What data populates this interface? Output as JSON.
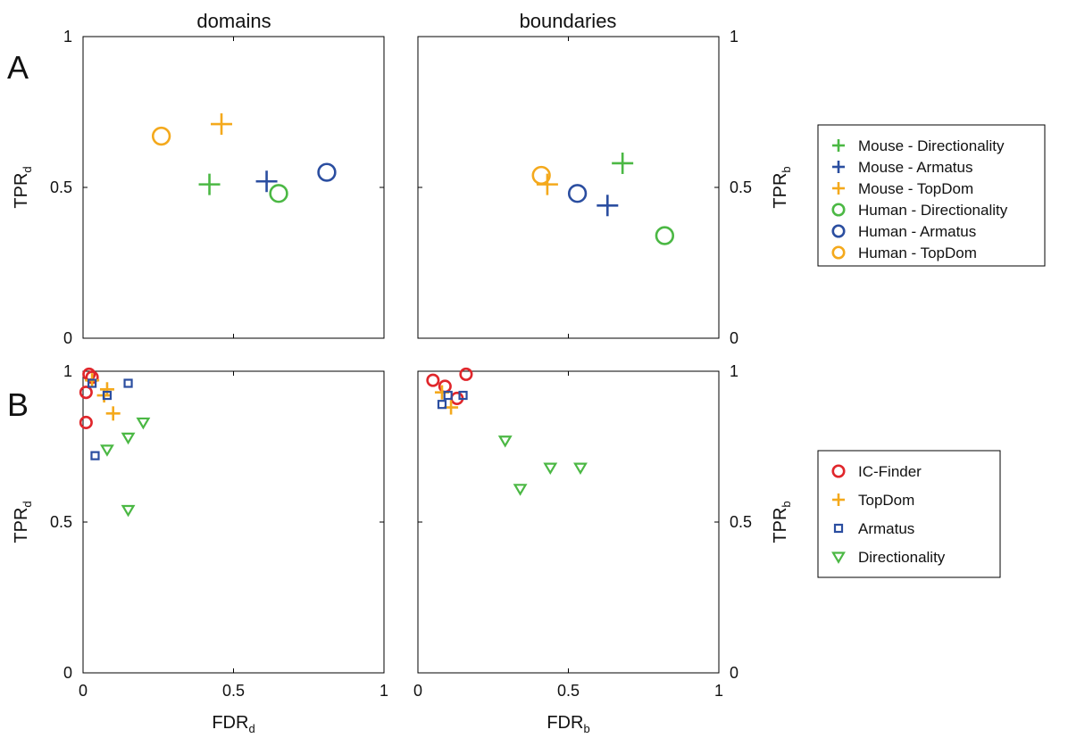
{
  "colors": {
    "green": "#4bb844",
    "blue": "#2b4ea0",
    "orange": "#f4a91c",
    "red": "#e0262b"
  },
  "columns": [
    "domains",
    "boundaries"
  ],
  "panel_letters": [
    "A",
    "B"
  ],
  "axis_labels": {
    "x_left": {
      "main": "FDR",
      "sub": "d"
    },
    "x_right": {
      "main": "FDR",
      "sub": "b"
    },
    "y_left": {
      "main": "TPR",
      "sub": "d"
    },
    "y_right": {
      "main": "TPR",
      "sub": "b"
    }
  },
  "tick_labels": {
    "x": [
      "0",
      "0.5",
      "1"
    ],
    "y": [
      "0",
      "0.5",
      "1"
    ]
  },
  "legends": {
    "A": [
      {
        "label": "Mouse - Directionality",
        "marker": "plus",
        "color": "#4bb844"
      },
      {
        "label": "Mouse - Armatus",
        "marker": "plus",
        "color": "#2b4ea0"
      },
      {
        "label": "Mouse - TopDom",
        "marker": "plus",
        "color": "#f4a91c"
      },
      {
        "label": "Human - Directionality",
        "marker": "circle",
        "color": "#4bb844"
      },
      {
        "label": "Human - Armatus",
        "marker": "circle",
        "color": "#2b4ea0"
      },
      {
        "label": "Human - TopDom",
        "marker": "circle",
        "color": "#f4a91c"
      }
    ],
    "B": [
      {
        "label": "IC-Finder",
        "marker": "circle",
        "color": "#e0262b"
      },
      {
        "label": "TopDom",
        "marker": "plus",
        "color": "#f4a91c"
      },
      {
        "label": "Armatus",
        "marker": "square",
        "color": "#2b4ea0"
      },
      {
        "label": "Directionality",
        "marker": "triangle",
        "color": "#4bb844"
      }
    ]
  },
  "chart_data": [
    {
      "type": "scatter",
      "panel": "A",
      "title": "domains",
      "xlabel": "FDR_d",
      "ylabel": "TPR_d",
      "xlim": [
        0,
        1
      ],
      "ylim": [
        0,
        1
      ],
      "series": [
        {
          "name": "Mouse - Directionality",
          "marker": "plus",
          "color": "#4bb844",
          "points": [
            [
              0.42,
              0.51
            ]
          ]
        },
        {
          "name": "Mouse - Armatus",
          "marker": "plus",
          "color": "#2b4ea0",
          "points": [
            [
              0.61,
              0.52
            ]
          ]
        },
        {
          "name": "Mouse - TopDom",
          "marker": "plus",
          "color": "#f4a91c",
          "points": [
            [
              0.46,
              0.71
            ]
          ]
        },
        {
          "name": "Human - Directionality",
          "marker": "circle",
          "color": "#4bb844",
          "points": [
            [
              0.65,
              0.48
            ]
          ]
        },
        {
          "name": "Human - Armatus",
          "marker": "circle",
          "color": "#2b4ea0",
          "points": [
            [
              0.81,
              0.55
            ]
          ]
        },
        {
          "name": "Human - TopDom",
          "marker": "circle",
          "color": "#f4a91c",
          "points": [
            [
              0.26,
              0.67
            ]
          ]
        }
      ]
    },
    {
      "type": "scatter",
      "panel": "A",
      "title": "boundaries",
      "xlabel": "FDR_b",
      "ylabel": "TPR_b",
      "xlim": [
        0,
        1
      ],
      "ylim": [
        0,
        1
      ],
      "series": [
        {
          "name": "Mouse - Directionality",
          "marker": "plus",
          "color": "#4bb844",
          "points": [
            [
              0.68,
              0.58
            ]
          ]
        },
        {
          "name": "Mouse - Armatus",
          "marker": "plus",
          "color": "#2b4ea0",
          "points": [
            [
              0.63,
              0.44
            ]
          ]
        },
        {
          "name": "Mouse - TopDom",
          "marker": "plus",
          "color": "#f4a91c",
          "points": [
            [
              0.43,
              0.51
            ]
          ]
        },
        {
          "name": "Human - Directionality",
          "marker": "circle",
          "color": "#4bb844",
          "points": [
            [
              0.82,
              0.34
            ]
          ]
        },
        {
          "name": "Human - Armatus",
          "marker": "circle",
          "color": "#2b4ea0",
          "points": [
            [
              0.53,
              0.48
            ]
          ]
        },
        {
          "name": "Human - TopDom",
          "marker": "circle",
          "color": "#f4a91c",
          "points": [
            [
              0.41,
              0.54
            ]
          ]
        }
      ]
    },
    {
      "type": "scatter",
      "panel": "B",
      "title": "",
      "xlabel": "FDR_d",
      "ylabel": "TPR_d",
      "xlim": [
        0,
        1
      ],
      "ylim": [
        0,
        1
      ],
      "series": [
        {
          "name": "IC-Finder",
          "marker": "circle",
          "color": "#e0262b",
          "points": [
            [
              0.02,
              0.99
            ],
            [
              0.03,
              0.98
            ],
            [
              0.01,
              0.93
            ],
            [
              0.01,
              0.83
            ]
          ]
        },
        {
          "name": "TopDom",
          "marker": "plus",
          "color": "#f4a91c",
          "points": [
            [
              0.03,
              0.97
            ],
            [
              0.08,
              0.94
            ],
            [
              0.07,
              0.92
            ],
            [
              0.1,
              0.86
            ]
          ]
        },
        {
          "name": "Armatus",
          "marker": "square",
          "color": "#2b4ea0",
          "points": [
            [
              0.03,
              0.96
            ],
            [
              0.08,
              0.92
            ],
            [
              0.15,
              0.96
            ],
            [
              0.04,
              0.72
            ]
          ]
        },
        {
          "name": "Directionality",
          "marker": "triangle",
          "color": "#4bb844",
          "points": [
            [
              0.2,
              0.83
            ],
            [
              0.15,
              0.78
            ],
            [
              0.08,
              0.74
            ],
            [
              0.15,
              0.54
            ]
          ]
        }
      ]
    },
    {
      "type": "scatter",
      "panel": "B",
      "title": "",
      "xlabel": "FDR_b",
      "ylabel": "TPR_b",
      "xlim": [
        0,
        1
      ],
      "ylim": [
        0,
        1
      ],
      "series": [
        {
          "name": "IC-Finder",
          "marker": "circle",
          "color": "#e0262b",
          "points": [
            [
              0.05,
              0.97
            ],
            [
              0.16,
              0.99
            ],
            [
              0.09,
              0.95
            ],
            [
              0.13,
              0.91
            ]
          ]
        },
        {
          "name": "TopDom",
          "marker": "plus",
          "color": "#f4a91c",
          "points": [
            [
              0.08,
              0.93
            ],
            [
              0.11,
              0.88
            ]
          ]
        },
        {
          "name": "Armatus",
          "marker": "square",
          "color": "#2b4ea0",
          "points": [
            [
              0.08,
              0.89
            ],
            [
              0.1,
              0.92
            ],
            [
              0.15,
              0.92
            ]
          ]
        },
        {
          "name": "Directionality",
          "marker": "triangle",
          "color": "#4bb844",
          "points": [
            [
              0.29,
              0.77
            ],
            [
              0.34,
              0.61
            ],
            [
              0.44,
              0.68
            ],
            [
              0.54,
              0.68
            ]
          ]
        }
      ]
    }
  ]
}
